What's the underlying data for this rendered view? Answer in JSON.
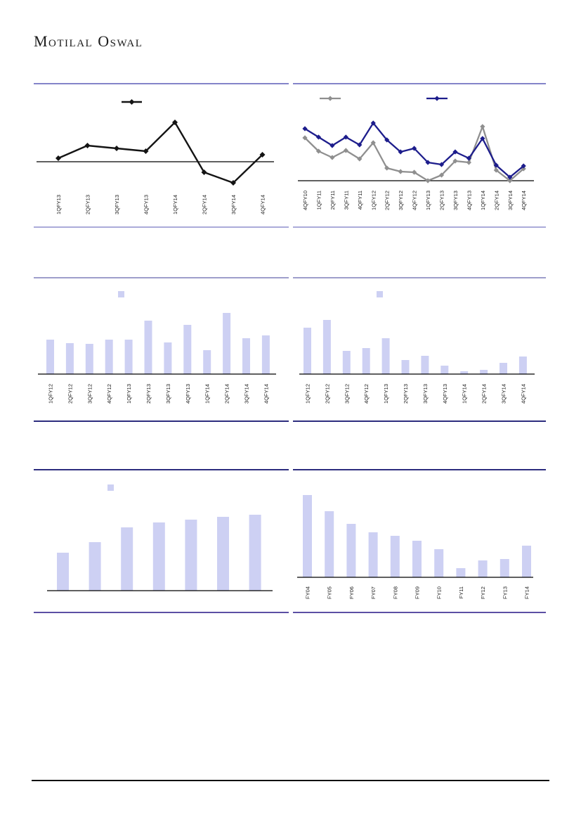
{
  "brand": {
    "text": "Motilal Oswal"
  },
  "colors": {
    "bar_fill": "#CDD0F3",
    "line_black": "#141414",
    "line_gray": "#8F8F8F",
    "line_navy": "#1D1D8C",
    "axis_line": "#000000",
    "label_text": "#1A1A1A",
    "divider_row1_top": "#8484C9",
    "divider_row1_bottom": "#ABABD9",
    "divider_row2_top": "#9E9ECB",
    "divider_row2_dark": "#2D2D7E",
    "divider_row3_bottom": "#5B4FA4",
    "footer_rule": "#101010"
  },
  "chart_data": [
    {
      "type": "line",
      "title": "",
      "categories": [
        "1QFY13",
        "2QFY13",
        "3QFY13",
        "4QFY13",
        "1QFY14",
        "2QFY14",
        "3QFY14",
        "4QFY14"
      ],
      "series": [
        {
          "name": "",
          "color": "#141414",
          "values": [
            5,
            23,
            19,
            15,
            56,
            -15,
            -30,
            10
          ]
        }
      ],
      "ylim": [
        -40,
        90
      ],
      "zero_line": true,
      "grid": false,
      "legend": [
        {
          "label": "",
          "marker": "line-diamond",
          "color": "#141414"
        }
      ],
      "legend_position": "top-center"
    },
    {
      "type": "line",
      "title": "",
      "categories": [
        "4QFY10",
        "1QFY11",
        "2QFY11",
        "3QFY11",
        "4QFY11",
        "1QFY12",
        "2QFY12",
        "3QFY12",
        "4QFY12",
        "1QFY13",
        "2QFY13",
        "3QFY13",
        "4QFY13",
        "1QFY14",
        "2QFY14",
        "3QFY14",
        "4QFY14"
      ],
      "series": [
        {
          "name": "",
          "color": "#8F8F8F",
          "values": [
            61,
            42,
            33,
            43,
            31,
            54,
            18,
            13,
            12,
            0,
            8,
            28,
            26,
            77,
            15,
            0,
            17
          ]
        },
        {
          "name": "",
          "color": "#1D1D8C",
          "values": [
            74,
            62,
            50,
            62,
            51,
            82,
            58,
            41,
            46,
            26,
            23,
            41,
            32,
            60,
            22,
            5,
            21
          ]
        }
      ],
      "ylim": [
        0,
        95
      ],
      "zero_line": true,
      "grid": false,
      "legend": [
        {
          "label": "",
          "marker": "line-diamond",
          "color": "#8F8F8F"
        },
        {
          "label": "",
          "marker": "line-diamond",
          "color": "#1D1D8C"
        }
      ],
      "legend_position": "top"
    },
    {
      "type": "bar",
      "title": "",
      "categories": [
        "1QFY12",
        "2QFY12",
        "3QFY12",
        "4QFY12",
        "1QFY13",
        "2QFY13",
        "3QFY13",
        "4QFY13",
        "1QFY14",
        "2QFY14",
        "3QFY14",
        "4QFY14"
      ],
      "values": [
        49,
        44,
        43,
        49,
        49,
        76,
        45,
        70,
        34,
        87,
        51,
        55
      ],
      "ylim": [
        0,
        136
      ],
      "grid": false,
      "legend": [
        {
          "label": "",
          "marker": "square",
          "color": "#CDD0F3"
        }
      ],
      "legend_position": "top-center"
    },
    {
      "type": "bar",
      "title": "",
      "categories": [
        "1QFY12",
        "2QFY12",
        "3QFY12",
        "4QFY12",
        "1QFY13",
        "2QFY13",
        "3QFY13",
        "4QFY13",
        "1QFY14",
        "2QFY14",
        "3QFY14",
        "4QFY14"
      ],
      "values": [
        66,
        77,
        33,
        37,
        51,
        20,
        26,
        12,
        4,
        6,
        16,
        25
      ],
      "ylim": [
        0,
        136
      ],
      "grid": false,
      "legend": [
        {
          "label": "",
          "marker": "square",
          "color": "#CDD0F3"
        }
      ],
      "legend_position": "top-center"
    },
    {
      "type": "bar",
      "title": "",
      "categories": [],
      "values": [
        54,
        69,
        90,
        97,
        101,
        105,
        108
      ],
      "ylim": [
        0,
        171
      ],
      "grid": false,
      "legend": [
        {
          "label": "",
          "marker": "square",
          "color": "#CDD0F3"
        }
      ],
      "legend_position": "top-center"
    },
    {
      "type": "bar",
      "title": "",
      "categories": [
        "FY04",
        "FY05",
        "FY06",
        "FY07",
        "FY08",
        "FY09",
        "FY10",
        "FY11",
        "FY12",
        "FY13",
        "FY14"
      ],
      "values": [
        117,
        94,
        76,
        64,
        59,
        52,
        40,
        13,
        24,
        26,
        45
      ],
      "ylim": [
        0,
        152
      ],
      "grid": false,
      "legend": [],
      "legend_position": "none"
    }
  ]
}
